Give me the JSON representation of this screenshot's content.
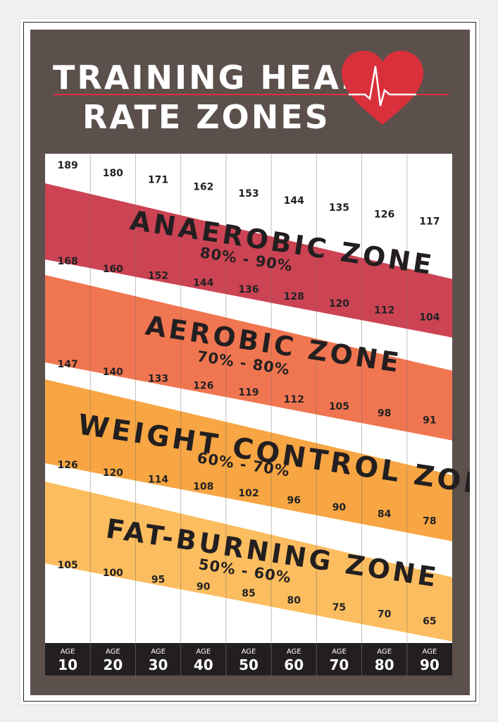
{
  "title_line1": "TRAINING HEART",
  "title_line2": "RATE ZONES",
  "colors": {
    "background": "#5c504c",
    "heart": "#d9303b",
    "title": "#ffffff",
    "age_bar": "#231f20"
  },
  "chart_data": {
    "type": "table",
    "title": "TRAINING HEART RATE ZONES",
    "age_label": "AGE",
    "ages": [
      10,
      20,
      30,
      40,
      50,
      60,
      70,
      80,
      90
    ],
    "boundaries": [
      {
        "percent": 90,
        "values": [
          189,
          180,
          171,
          162,
          153,
          144,
          135,
          126,
          117
        ]
      },
      {
        "percent": 80,
        "values": [
          168,
          160,
          152,
          144,
          136,
          128,
          120,
          112,
          104
        ]
      },
      {
        "percent": 70,
        "values": [
          147,
          140,
          133,
          126,
          119,
          112,
          105,
          98,
          91
        ]
      },
      {
        "percent": 60,
        "values": [
          126,
          120,
          114,
          108,
          102,
          96,
          90,
          84,
          78
        ]
      },
      {
        "percent": 50,
        "values": [
          105,
          100,
          95,
          90,
          85,
          80,
          75,
          70,
          65
        ]
      }
    ],
    "zones": [
      {
        "name": "ANAEROBIC ZONE",
        "range": "80% - 90%",
        "color": "#cc4454"
      },
      {
        "name": "AEROBIC ZONE",
        "range": "70% - 80%",
        "color": "#f07651"
      },
      {
        "name": "WEIGHT CONTROL ZONE",
        "range": "60% - 70%",
        "color": "#f7a643"
      },
      {
        "name": "FAT-BURNING ZONE",
        "range": "50% - 60%",
        "color": "#fbbd5f"
      }
    ]
  }
}
